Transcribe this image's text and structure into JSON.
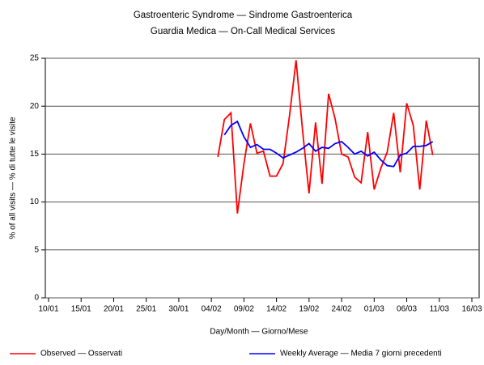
{
  "chart_data": {
    "type": "line",
    "title": "Gastroenteric Syndrome — Sindrome Gastroenterica",
    "subtitle": "Guardia Medica — On-Call Medical Services",
    "x_label": "Day/Month — Giorno/Mese",
    "y_label": "% of all visits — % di tutte le visite",
    "categories": [
      "10/01",
      null,
      null,
      null,
      null,
      "15/01",
      null,
      null,
      null,
      null,
      "20/01",
      null,
      null,
      null,
      null,
      "25/01",
      null,
      null,
      null,
      null,
      "30/01",
      null,
      null,
      null,
      null,
      "04/02",
      null,
      null,
      null,
      null,
      "09/02",
      null,
      null,
      null,
      null,
      "14/02",
      null,
      null,
      null,
      null,
      "19/02",
      null,
      null,
      null,
      null,
      "24/02",
      null,
      null,
      null,
      null,
      "01/03",
      null,
      null,
      null,
      null,
      "06/03",
      null,
      null,
      null,
      null,
      "11/03",
      null,
      null,
      null,
      null,
      "16/03"
    ],
    "series": [
      {
        "name": "Observed — Osservati",
        "color": "#ff0000",
        "values": [
          null,
          null,
          null,
          null,
          null,
          null,
          null,
          null,
          null,
          null,
          null,
          null,
          null,
          null,
          null,
          null,
          null,
          null,
          null,
          null,
          null,
          null,
          null,
          null,
          null,
          null,
          14.7,
          18.6,
          19.3,
          8.8,
          14.0,
          18.2,
          15.1,
          15.3,
          12.7,
          12.7,
          14.0,
          19.0,
          24.8,
          17.5,
          10.9,
          18.3,
          11.9,
          21.3,
          18.7,
          15.0,
          14.7,
          12.6,
          12.0,
          17.3,
          11.3,
          13.5,
          15.2,
          19.3,
          13.1,
          20.3,
          18.0,
          11.3,
          18.5,
          14.9,
          null,
          null,
          null,
          null,
          null,
          null
        ]
      },
      {
        "name": "Weekly Average — Media 7 giorni precedenti",
        "color": "#0000ff",
        "values": [
          null,
          null,
          null,
          null,
          null,
          null,
          null,
          null,
          null,
          null,
          null,
          null,
          null,
          null,
          null,
          null,
          null,
          null,
          null,
          null,
          null,
          null,
          null,
          null,
          null,
          null,
          null,
          17.0,
          18.0,
          18.4,
          16.8,
          15.7,
          16.0,
          15.5,
          15.5,
          15.1,
          14.6,
          14.9,
          15.2,
          15.6,
          16.1,
          15.3,
          15.7,
          15.6,
          16.1,
          16.3,
          15.7,
          15.0,
          15.3,
          14.8,
          15.2,
          14.4,
          13.8,
          13.7,
          14.9,
          15.1,
          15.8,
          15.8,
          15.9,
          16.3,
          null,
          null,
          null,
          null,
          null,
          null
        ]
      }
    ],
    "ylim": [
      0,
      25
    ],
    "yticks": [
      0,
      5,
      10,
      15,
      20,
      25
    ],
    "grid": true,
    "legend": "bottom"
  }
}
